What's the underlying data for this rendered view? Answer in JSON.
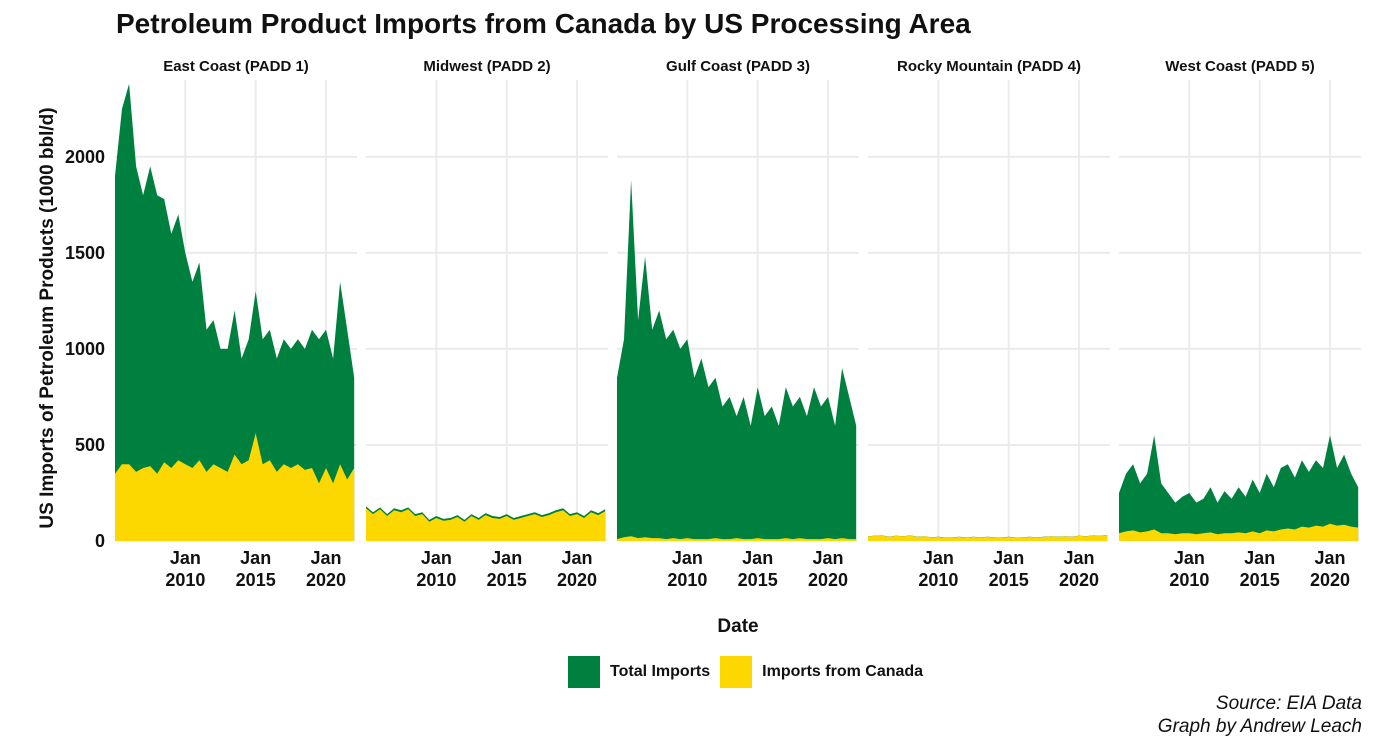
{
  "title": "Petroleum Product Imports from Canada by US Processing Area",
  "caption": {
    "line1": "Source: EIA Data",
    "line2": "Graph by Andrew Leach"
  },
  "xlabel": "Date",
  "ylabel": "US Imports of Petroleum Products (1000 bbl/d)",
  "legend": [
    {
      "name": "Total Imports",
      "color": "#00803f"
    },
    {
      "name": "Imports from Canada",
      "color": "#fdd800"
    }
  ],
  "colors": {
    "total": "#00803f",
    "canada": "#fdd800",
    "grid": "#ebebeb"
  },
  "chart_data": {
    "type": "area",
    "stacking": "overlay",
    "x_range": [
      2005.0,
      2022.2
    ],
    "ylim": [
      0,
      2400
    ],
    "y_ticks": [
      0,
      500,
      1000,
      1500,
      2000
    ],
    "x_ticks": [
      {
        "year": 2010,
        "line1": "Jan",
        "line2": "2010"
      },
      {
        "year": 2015,
        "line1": "Jan",
        "line2": "2015"
      },
      {
        "year": 2020,
        "line1": "Jan",
        "line2": "2020"
      }
    ],
    "grid": true,
    "legend_position": "bottom",
    "panels": [
      {
        "name": "East Coast (PADD 1)",
        "x": [
          2005.0,
          2005.5,
          2006.0,
          2006.5,
          2007.0,
          2007.5,
          2008.0,
          2008.5,
          2009.0,
          2009.5,
          2010.0,
          2010.5,
          2011.0,
          2011.5,
          2012.0,
          2012.5,
          2013.0,
          2013.5,
          2014.0,
          2014.5,
          2015.0,
          2015.5,
          2016.0,
          2016.5,
          2017.0,
          2017.5,
          2018.0,
          2018.5,
          2019.0,
          2019.5,
          2020.0,
          2020.5,
          2021.0,
          2021.5,
          2022.0
        ],
        "series": [
          {
            "name": "Total Imports",
            "values": [
              1900,
              2250,
              2380,
              1950,
              1800,
              1950,
              1800,
              1780,
              1600,
              1700,
              1500,
              1350,
              1450,
              1100,
              1150,
              1000,
              1000,
              1200,
              950,
              1050,
              1300,
              1050,
              1100,
              950,
              1050,
              1000,
              1050,
              1000,
              1100,
              1050,
              1100,
              950,
              1350,
              1100,
              850
            ]
          },
          {
            "name": "Imports from Canada",
            "values": [
              350,
              400,
              400,
              360,
              380,
              390,
              350,
              410,
              380,
              420,
              400,
              380,
              420,
              360,
              400,
              380,
              360,
              450,
              400,
              420,
              560,
              400,
              420,
              360,
              400,
              380,
              400,
              370,
              380,
              300,
              380,
              300,
              400,
              320,
              380
            ]
          }
        ]
      },
      {
        "name": "Midwest (PADD 2)",
        "x": [
          2005.0,
          2005.5,
          2006.0,
          2006.5,
          2007.0,
          2007.5,
          2008.0,
          2008.5,
          2009.0,
          2009.5,
          2010.0,
          2010.5,
          2011.0,
          2011.5,
          2012.0,
          2012.5,
          2013.0,
          2013.5,
          2014.0,
          2014.5,
          2015.0,
          2015.5,
          2016.0,
          2016.5,
          2017.0,
          2017.5,
          2018.0,
          2018.5,
          2019.0,
          2019.5,
          2020.0,
          2020.5,
          2021.0,
          2021.5,
          2022.0
        ],
        "series": [
          {
            "name": "Total Imports",
            "values": [
              180,
              150,
              175,
              140,
              170,
              160,
              175,
              140,
              150,
              110,
              130,
              115,
              120,
              135,
              110,
              140,
              120,
              145,
              130,
              125,
              140,
              120,
              130,
              140,
              150,
              135,
              145,
              160,
              170,
              140,
              150,
              130,
              160,
              145,
              165
            ]
          },
          {
            "name": "Imports from Canada",
            "values": [
              170,
              140,
              165,
              130,
              160,
              150,
              165,
              130,
              140,
              100,
              120,
              105,
              110,
              125,
              100,
              130,
              110,
              135,
              120,
              115,
              130,
              110,
              120,
              130,
              140,
              125,
              135,
              150,
              160,
              130,
              140,
              120,
              150,
              135,
              155
            ]
          }
        ]
      },
      {
        "name": "Gulf Coast (PADD 3)",
        "x": [
          2005.0,
          2005.5,
          2006.0,
          2006.5,
          2007.0,
          2007.5,
          2008.0,
          2008.5,
          2009.0,
          2009.5,
          2010.0,
          2010.5,
          2011.0,
          2011.5,
          2012.0,
          2012.5,
          2013.0,
          2013.5,
          2014.0,
          2014.5,
          2015.0,
          2015.5,
          2016.0,
          2016.5,
          2017.0,
          2017.5,
          2018.0,
          2018.5,
          2019.0,
          2019.5,
          2020.0,
          2020.5,
          2021.0,
          2021.5,
          2022.0
        ],
        "series": [
          {
            "name": "Total Imports",
            "values": [
              850,
              1050,
              1880,
              1150,
              1480,
              1100,
              1200,
              1050,
              1100,
              1000,
              1050,
              850,
              950,
              800,
              850,
              700,
              750,
              650,
              750,
              600,
              800,
              650,
              700,
              600,
              800,
              700,
              750,
              650,
              800,
              700,
              750,
              600,
              900,
              750,
              600
            ]
          },
          {
            "name": "Imports from Canada",
            "values": [
              10,
              20,
              25,
              15,
              20,
              15,
              15,
              10,
              15,
              10,
              15,
              10,
              10,
              10,
              15,
              10,
              10,
              15,
              10,
              10,
              15,
              10,
              10,
              10,
              15,
              10,
              15,
              10,
              10,
              10,
              15,
              10,
              15,
              10,
              10
            ]
          }
        ]
      },
      {
        "name": "Rocky Mountain (PADD 4)",
        "x": [
          2005.0,
          2005.5,
          2006.0,
          2006.5,
          2007.0,
          2007.5,
          2008.0,
          2008.5,
          2009.0,
          2009.5,
          2010.0,
          2010.5,
          2011.0,
          2011.5,
          2012.0,
          2012.5,
          2013.0,
          2013.5,
          2014.0,
          2014.5,
          2015.0,
          2015.5,
          2016.0,
          2016.5,
          2017.0,
          2017.5,
          2018.0,
          2018.5,
          2019.0,
          2019.5,
          2020.0,
          2020.5,
          2021.0,
          2021.5,
          2022.0
        ],
        "series": [
          {
            "name": "Total Imports",
            "values": [
              25,
              28,
              30,
              22,
              28,
              25,
              30,
              22,
              25,
              20,
              22,
              18,
              20,
              22,
              18,
              22,
              20,
              22,
              20,
              18,
              22,
              18,
              20,
              22,
              20,
              22,
              25,
              22,
              25,
              22,
              28,
              25,
              30,
              28,
              32
            ]
          },
          {
            "name": "Imports from Canada",
            "values": [
              24,
              27,
              29,
              21,
              27,
              24,
              29,
              21,
              24,
              19,
              21,
              17,
              19,
              21,
              17,
              21,
              19,
              21,
              19,
              17,
              21,
              17,
              19,
              21,
              19,
              21,
              24,
              21,
              24,
              21,
              27,
              24,
              29,
              27,
              31
            ]
          }
        ]
      },
      {
        "name": "West Coast (PADD 5)",
        "x": [
          2005.0,
          2005.5,
          2006.0,
          2006.5,
          2007.0,
          2007.5,
          2008.0,
          2008.5,
          2009.0,
          2009.5,
          2010.0,
          2010.5,
          2011.0,
          2011.5,
          2012.0,
          2012.5,
          2013.0,
          2013.5,
          2014.0,
          2014.5,
          2015.0,
          2015.5,
          2016.0,
          2016.5,
          2017.0,
          2017.5,
          2018.0,
          2018.5,
          2019.0,
          2019.5,
          2020.0,
          2020.5,
          2021.0,
          2021.5,
          2022.0
        ],
        "series": [
          {
            "name": "Total Imports",
            "values": [
              250,
              350,
              400,
              300,
              350,
              550,
              300,
              250,
              200,
              230,
              250,
              200,
              220,
              280,
              200,
              260,
              220,
              280,
              230,
              320,
              250,
              350,
              280,
              380,
              400,
              330,
              420,
              360,
              420,
              380,
              550,
              380,
              450,
              350,
              280
            ]
          },
          {
            "name": "Imports from Canada",
            "values": [
              40,
              50,
              55,
              45,
              50,
              60,
              40,
              40,
              35,
              40,
              40,
              35,
              40,
              45,
              35,
              40,
              40,
              45,
              40,
              50,
              40,
              55,
              50,
              60,
              65,
              60,
              75,
              70,
              80,
              75,
              90,
              80,
              85,
              75,
              70
            ]
          }
        ]
      }
    ]
  }
}
